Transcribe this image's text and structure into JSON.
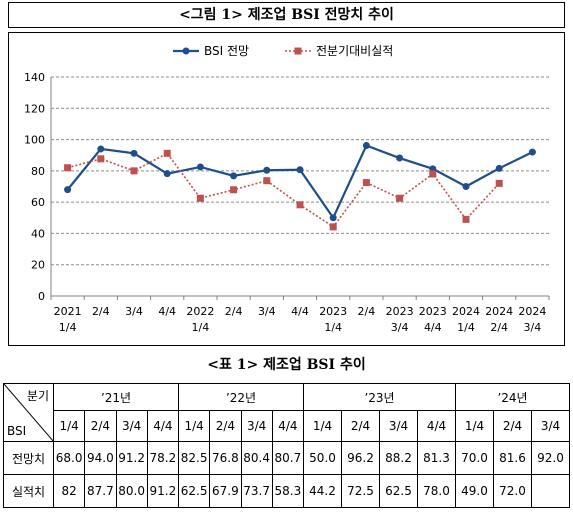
{
  "figure_title": "<그림 1> 제조업 BSI 전망치 추이",
  "table_title": "<표 1> 제조업 BSI 추이",
  "chart_data": {
    "type": "line",
    "categories": [
      [
        "2021",
        "1/4"
      ],
      [
        "2/4",
        ""
      ],
      [
        "3/4",
        ""
      ],
      [
        "4/4",
        ""
      ],
      [
        "2022",
        "1/4"
      ],
      [
        "2/4",
        ""
      ],
      [
        "3/4",
        ""
      ],
      [
        "4/4",
        ""
      ],
      [
        "2023",
        "1/4"
      ],
      [
        "2/4",
        ""
      ],
      [
        "2023",
        "3/4"
      ],
      [
        "2023",
        "4/4"
      ],
      [
        "2024",
        "1/4"
      ],
      [
        "2024",
        "2/4"
      ],
      [
        "2024",
        "3/4"
      ]
    ],
    "series": [
      {
        "name": "BSI 전망",
        "values": [
          68.0,
          94.0,
          91.2,
          78.2,
          82.5,
          76.8,
          80.4,
          80.7,
          50.0,
          96.2,
          88.2,
          81.3,
          70.0,
          81.6,
          92.0
        ],
        "color": "#1f4e8c",
        "style": "solid",
        "marker": "circle"
      },
      {
        "name": "전분기대비실적",
        "values": [
          82,
          87.7,
          80.0,
          91.2,
          62.5,
          67.9,
          73.7,
          58.3,
          44.2,
          72.5,
          62.5,
          78.0,
          49.0,
          72.0,
          null
        ],
        "color": "#c0504d",
        "style": "dotted",
        "marker": "square"
      }
    ],
    "ylim": [
      0,
      140
    ],
    "yticks": [
      0,
      20,
      40,
      60,
      80,
      100,
      120,
      140
    ],
    "grid": "horizontal-dashed",
    "legend": "top-center"
  },
  "table": {
    "corner_top": "분기",
    "corner_bottom": "BSI",
    "years": [
      {
        "label": "’21년",
        "span": 4
      },
      {
        "label": "’22년",
        "span": 4
      },
      {
        "label": "’23년",
        "span": 4
      },
      {
        "label": "’24년",
        "span": 3
      }
    ],
    "quarters": [
      "1/4",
      "2/4",
      "3/4",
      "4/4",
      "1/4",
      "2/4",
      "3/4",
      "4/4",
      "1/4",
      "2/4",
      "3/4",
      "4/4",
      "1/4",
      "2/4",
      "3/4"
    ],
    "rows": [
      {
        "label": "전망치",
        "cells": [
          "68.0",
          "94.0",
          "91.2",
          "78.2",
          "82.5",
          "76.8",
          "80.4",
          "80.7",
          "50.0",
          "96.2",
          "88.2",
          "81.3",
          "70.0",
          "81.6",
          "92.0"
        ]
      },
      {
        "label": "실적치",
        "cells": [
          "82",
          "87.7",
          "80.0",
          "91.2",
          "62.5",
          "67.9",
          "73.7",
          "58.3",
          "44.2",
          "72.5",
          "62.5",
          "78.0",
          "49.0",
          "72.0",
          ""
        ]
      }
    ]
  }
}
